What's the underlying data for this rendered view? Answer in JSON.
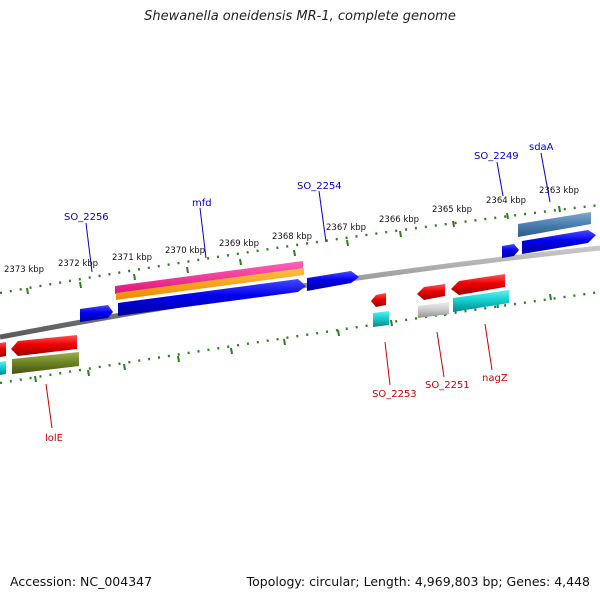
{
  "title": "Shewanella oneidensis MR-1, complete genome",
  "footer": {
    "accession": "Accession: NC_004347",
    "summary": "Topology: circular; Length: 4,969,803 bp; Genes: 4,448"
  },
  "ruler_labels": [
    "2363 kbp",
    "2364 kbp",
    "2365 kbp",
    "2366 kbp",
    "2367 kbp",
    "2368 kbp",
    "2369 kbp",
    "2370 kbp",
    "2371 kbp",
    "2372 kbp",
    "2373 kbp"
  ],
  "gene_labels_top": [
    "sdaA",
    "SO_2249",
    "SO_2254",
    "mfd",
    "SO_2256"
  ],
  "gene_labels_bottom": [
    "nagZ",
    "SO_2251",
    "SO_2253",
    "lolE"
  ],
  "colors": {
    "forward_label": "#0000cc",
    "reverse_label": "#cc0000",
    "ruler_tick": "#2e7d1e",
    "backbone": "#8a8a8a"
  }
}
